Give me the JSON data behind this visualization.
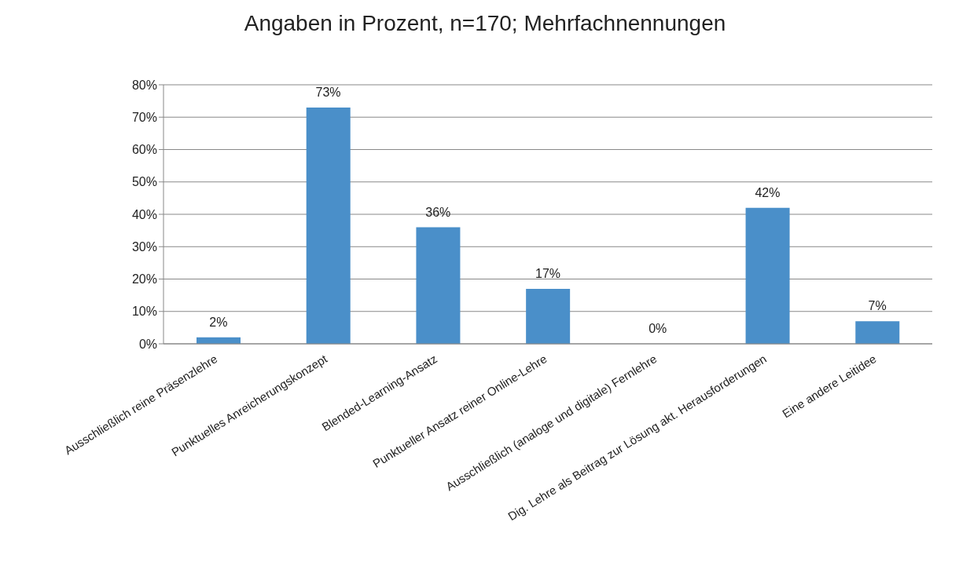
{
  "chart_data": {
    "type": "bar",
    "title": "Angaben in Prozent, n=170; Mehrfachnennungen",
    "categories": [
      "Ausschließlich reine Präsenzlehre",
      "Punktuelles Anreicherungskonzept",
      "Blended-Learning-Ansatz",
      "Punktueller Ansatz reiner Online-Lehre",
      "Ausschließlich (analoge und digitale) Fernlehre",
      "Dig. Lehre als Beitrag zur Lösung akt. Herausforderungen",
      "Eine andere Leitidee"
    ],
    "values": [
      2,
      73,
      36,
      17,
      0,
      42,
      7
    ],
    "value_labels": [
      "2%",
      "73%",
      "36%",
      "17%",
      "0%",
      "42%",
      "7%"
    ],
    "color": "#4a8fc9",
    "ylim": [
      0,
      80
    ],
    "yticks": [
      {
        "value": 0,
        "label": "0%"
      },
      {
        "value": 10,
        "label": "10%"
      },
      {
        "value": 20,
        "label": "20%"
      },
      {
        "value": 30,
        "label": "30%"
      },
      {
        "value": 40,
        "label": "40%"
      },
      {
        "value": 50,
        "label": "50%"
      },
      {
        "value": 60,
        "label": "60%"
      },
      {
        "value": 70,
        "label": "70%"
      },
      {
        "value": 80,
        "label": "80%"
      }
    ],
    "grid": "y",
    "legend": false
  }
}
